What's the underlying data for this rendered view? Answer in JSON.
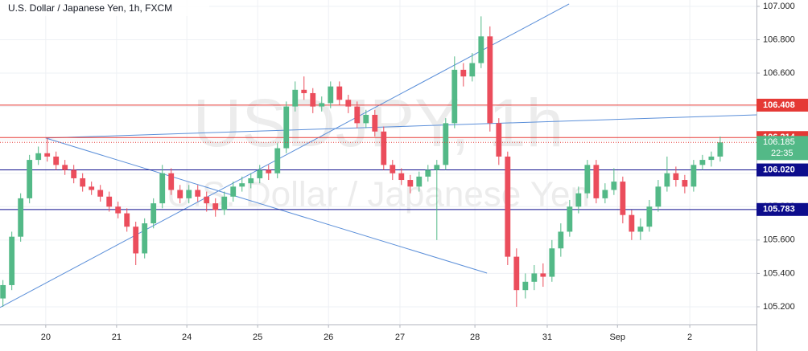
{
  "chart_data": {
    "type": "candlestick",
    "title": "U.S. Dollar / Japanese Yen, 1h, FXCM",
    "watermark": "USDJPY, 1h",
    "watermark_subtitle": "U.S. Dollar / Japanese Yen",
    "up_color": "#53b987",
    "down_color": "#eb4d5c",
    "grid": true,
    "xlim": [
      -1,
      255.3
    ],
    "ylim": [
      105.094,
      107.038
    ],
    "xticks": [
      {
        "value": 14.5,
        "label": "20"
      },
      {
        "value": 38.5,
        "label": "21"
      },
      {
        "value": 62.3,
        "label": "24"
      },
      {
        "value": 86.3,
        "label": "25"
      },
      {
        "value": 110.3,
        "label": "26"
      },
      {
        "value": 134.5,
        "label": "27"
      },
      {
        "value": 159.9,
        "label": "28"
      },
      {
        "value": 184.4,
        "label": "31"
      },
      {
        "value": 208.2,
        "label": "Sep"
      },
      {
        "value": 232.7,
        "label": "2"
      }
    ],
    "yticks": [
      {
        "value": 105.2,
        "label": "105.200"
      },
      {
        "value": 105.4,
        "label": "105.400"
      },
      {
        "value": 105.6,
        "label": "105.600"
      },
      {
        "value": 105.8,
        "label": "105.800"
      },
      {
        "value": 106.0,
        "label": "106.000"
      },
      {
        "value": 106.2,
        "label": "106.200"
      },
      {
        "value": 106.4,
        "label": "106.400"
      },
      {
        "value": 106.6,
        "label": "106.600"
      },
      {
        "value": 106.8,
        "label": "106.800"
      },
      {
        "value": 107.0,
        "label": "107.000"
      }
    ],
    "x": [
      0,
      3,
      6,
      9,
      12,
      15,
      18,
      21,
      24,
      27,
      30,
      33,
      36,
      39,
      42,
      45,
      48,
      51,
      54,
      57,
      60,
      63,
      66,
      69,
      72,
      75,
      78,
      81,
      84,
      87,
      90,
      93,
      96,
      99,
      102,
      105,
      108,
      111,
      114,
      117,
      120,
      123,
      126,
      129,
      132,
      135,
      138,
      141,
      144,
      147,
      150,
      153,
      156,
      159,
      162,
      165,
      168,
      171,
      174,
      177,
      180,
      183,
      186,
      189,
      192,
      195,
      198,
      201,
      204,
      207,
      210,
      213,
      216,
      219,
      222,
      225,
      228,
      231,
      234,
      237,
      240,
      243
    ],
    "open": [
      105.25,
      105.33,
      105.62,
      105.85,
      106.08,
      106.12,
      106.1,
      106.05,
      106.02,
      105.97,
      105.92,
      105.9,
      105.86,
      105.8,
      105.76,
      105.68,
      105.52,
      105.7,
      105.82,
      106.0,
      105.9,
      105.85,
      105.9,
      105.86,
      105.82,
      105.78,
      105.86,
      105.92,
      105.94,
      105.97,
      106.02,
      106.0,
      106.15,
      106.4,
      106.5,
      106.48,
      106.4,
      106.42,
      106.52,
      106.44,
      106.4,
      106.3,
      106.35,
      106.25,
      106.05,
      106.0,
      105.96,
      105.92,
      105.98,
      106.02,
      106.05,
      106.3,
      106.62,
      106.58,
      106.66,
      106.82,
      106.3,
      106.1,
      105.5,
      105.3,
      105.35,
      105.4,
      105.38,
      105.55,
      105.65,
      105.8,
      105.88,
      106.05,
      105.85,
      105.9,
      105.95,
      105.75,
      105.65,
      105.68,
      105.8,
      105.92,
      106.0,
      105.96,
      105.92,
      106.05,
      106.08,
      106.1
    ],
    "high": [
      105.36,
      105.65,
      105.88,
      106.11,
      106.16,
      106.21,
      106.13,
      106.08,
      106.05,
      106.0,
      105.95,
      105.93,
      105.89,
      105.83,
      105.79,
      105.71,
      105.73,
      105.85,
      106.05,
      106.03,
      105.93,
      105.93,
      105.93,
      105.89,
      105.85,
      105.89,
      105.95,
      105.98,
      106.0,
      106.05,
      106.05,
      106.18,
      106.43,
      106.55,
      106.58,
      106.51,
      106.46,
      106.55,
      106.55,
      106.47,
      106.43,
      106.38,
      106.38,
      106.28,
      106.08,
      106.03,
      105.99,
      106.01,
      106.05,
      106.08,
      106.33,
      106.7,
      106.66,
      106.72,
      106.94,
      106.88,
      106.33,
      106.13,
      105.55,
      105.4,
      105.45,
      105.46,
      105.6,
      105.7,
      105.84,
      105.92,
      106.08,
      106.08,
      105.94,
      106.03,
      105.98,
      105.78,
      105.73,
      105.84,
      105.96,
      106.1,
      106.04,
      105.99,
      106.08,
      106.11,
      106.13,
      106.22
    ],
    "low": [
      105.2,
      105.3,
      105.59,
      105.82,
      106.05,
      106.07,
      106.02,
      105.99,
      105.94,
      105.89,
      105.87,
      105.83,
      105.77,
      105.73,
      105.65,
      105.45,
      105.49,
      105.67,
      105.79,
      105.87,
      105.82,
      105.82,
      105.83,
      105.77,
      105.74,
      105.75,
      105.83,
      105.89,
      105.91,
      105.94,
      105.96,
      105.97,
      106.12,
      106.37,
      106.44,
      106.36,
      106.37,
      106.39,
      106.41,
      106.36,
      106.27,
      106.27,
      106.22,
      106.02,
      105.96,
      105.93,
      105.88,
      105.89,
      105.95,
      105.6,
      106.02,
      106.27,
      106.52,
      106.55,
      106.63,
      106.25,
      106.05,
      105.45,
      105.2,
      105.25,
      105.3,
      105.32,
      105.35,
      105.5,
      105.62,
      105.76,
      105.85,
      105.82,
      105.82,
      105.87,
      105.7,
      105.6,
      105.6,
      105.65,
      105.77,
      105.89,
      105.92,
      105.88,
      105.89,
      106.02,
      106.04,
      106.07
    ],
    "close": [
      105.33,
      105.62,
      105.85,
      106.08,
      106.12,
      106.1,
      106.05,
      106.02,
      105.97,
      105.92,
      105.9,
      105.86,
      105.8,
      105.76,
      105.68,
      105.52,
      105.7,
      105.82,
      106.0,
      105.9,
      105.85,
      105.9,
      105.86,
      105.82,
      105.78,
      105.86,
      105.92,
      105.94,
      105.97,
      106.02,
      106.0,
      106.15,
      106.4,
      106.5,
      106.48,
      106.4,
      106.42,
      106.52,
      106.44,
      106.4,
      106.3,
      106.35,
      106.25,
      106.05,
      106.0,
      105.96,
      105.92,
      105.98,
      106.02,
      106.05,
      106.3,
      106.62,
      106.58,
      106.66,
      106.82,
      106.3,
      106.1,
      105.5,
      105.3,
      105.35,
      105.4,
      105.38,
      105.55,
      105.65,
      105.8,
      105.88,
      106.05,
      105.85,
      105.9,
      105.95,
      105.75,
      105.65,
      105.68,
      105.8,
      105.92,
      106.0,
      105.96,
      105.92,
      106.05,
      106.08,
      106.1,
      106.185
    ],
    "levels": [
      {
        "value": 106.408,
        "color": "#e53935"
      },
      {
        "value": 106.214,
        "color": "#e53935"
      },
      {
        "value": 106.02,
        "label": "106.020",
        "color": "#0d0d8c"
      },
      {
        "value": 105.783,
        "color": "#0d0d8c"
      }
    ],
    "current_price": {
      "value": 106.185,
      "countdown": "22:35",
      "color": "#53b987"
    },
    "trend_lines": [
      {
        "x": [
          -1,
          191.8
        ],
        "y": [
          105.196,
          107.014
        ],
        "color": "#5b8fd9"
      },
      {
        "x": [
          14.5,
          255.3
        ],
        "y": [
          106.211,
          106.35
        ],
        "color": "#5b8fd9"
      },
      {
        "x": [
          14.5,
          164
        ],
        "y": [
          106.211,
          105.402
        ],
        "color": "#5b8fd9"
      }
    ]
  }
}
